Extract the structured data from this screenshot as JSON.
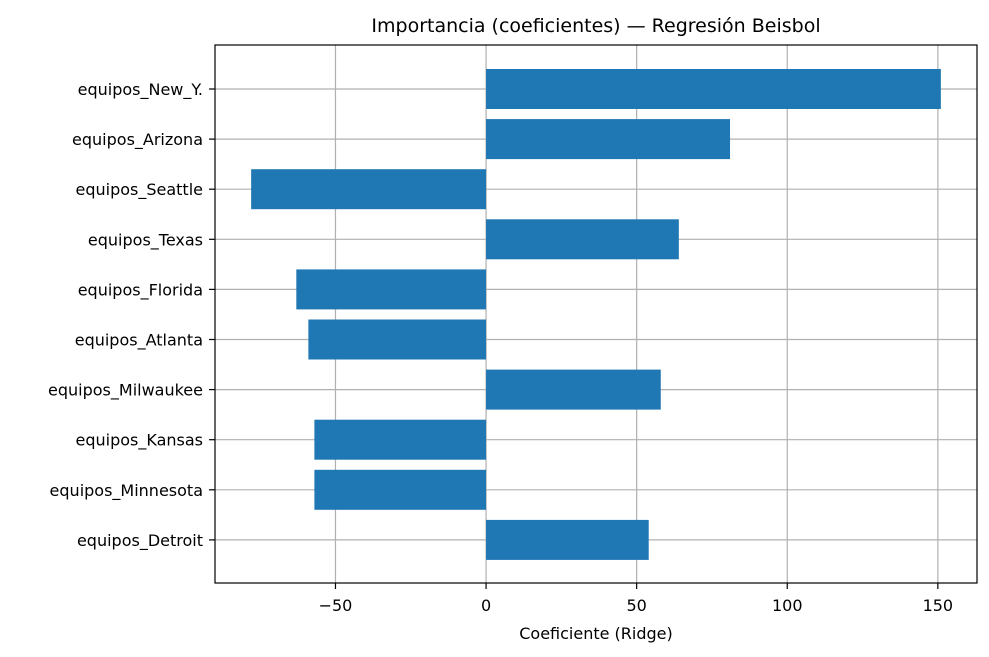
{
  "chart_data": {
    "type": "bar",
    "orientation": "horizontal",
    "title": "Importancia (coeficientes) — Regresión Beisbol",
    "xlabel": "Coeficiente (Ridge)",
    "ylabel": "",
    "categories": [
      "equipos_New_Y.",
      "equipos_Arizona",
      "equipos_Seattle",
      "equipos_Texas",
      "equipos_Florida",
      "equipos_Atlanta",
      "equipos_Milwaukee",
      "equipos_Kansas",
      "equipos_Minnesota",
      "equipos_Detroit"
    ],
    "values": [
      151,
      81,
      -78,
      64,
      -63,
      -59,
      58,
      -57,
      -57,
      54
    ],
    "xlim": [
      -90,
      163
    ],
    "xticks": [
      -50,
      0,
      50,
      100,
      150
    ],
    "xtick_labels": [
      "−50",
      "0",
      "50",
      "100",
      "150"
    ],
    "grid": true,
    "bar_color": "#1f77b4",
    "grid_color": "#b0b0b0"
  }
}
